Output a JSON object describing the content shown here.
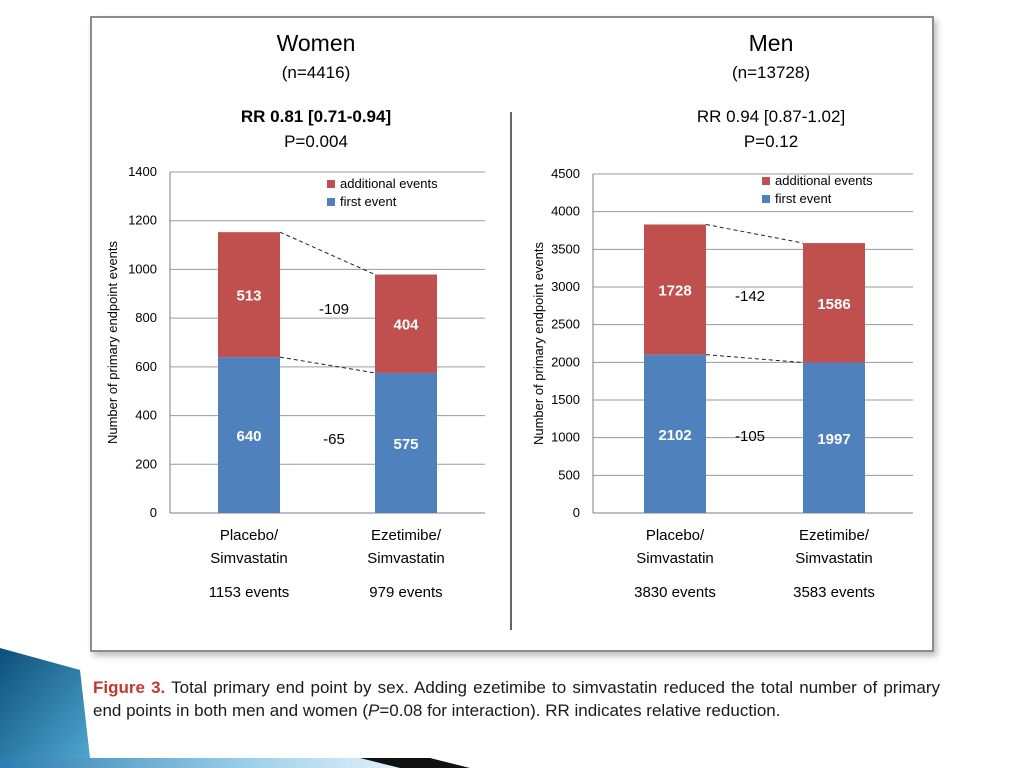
{
  "chart_data": [
    {
      "type": "bar",
      "stacked": true,
      "title": "Women",
      "subtitle": "(n=4416)",
      "rr_text": "RR 0.81 [0.71-0.94]",
      "rr_bold": true,
      "p_text": "P=0.004",
      "ylabel": "Number of primary endpoint events",
      "ylim": [
        0,
        1400
      ],
      "ytick_step": 200,
      "yticks": [
        "0",
        "200",
        "400",
        "600",
        "800",
        "1000",
        "1200",
        "1400"
      ],
      "categories": [
        "Placebo/ Simvastatin",
        "Ezetimibe/ Simvastatin"
      ],
      "category_lines": [
        [
          "Placebo/",
          "Simvastatin"
        ],
        [
          "Ezetimibe/",
          "Simvastatin"
        ]
      ],
      "series": [
        {
          "name": "first event",
          "values": [
            640,
            575
          ],
          "color": "#4f81bd"
        },
        {
          "name": "additional events",
          "values": [
            513,
            404
          ],
          "color": "#c0504d"
        }
      ],
      "value_labels": [
        [
          "640",
          "575"
        ],
        [
          "513",
          "404"
        ]
      ],
      "totals": [
        1153,
        979
      ],
      "total_labels": [
        "1153 events",
        "979 events"
      ],
      "diff_labels": {
        "first": "-65",
        "additional": "-109"
      },
      "legend": [
        "additional events",
        "first event"
      ],
      "legend_position": "top-right",
      "grid": true
    },
    {
      "type": "bar",
      "stacked": true,
      "title": "Men",
      "subtitle": "(n=13728)",
      "rr_text": "RR 0.94 [0.87-1.02]",
      "rr_bold": false,
      "p_text": "P=0.12",
      "ylabel": "Number of primary endpoint events",
      "ylim": [
        0,
        4500
      ],
      "ytick_step": 500,
      "yticks": [
        "0",
        "500",
        "1000",
        "1500",
        "2000",
        "2500",
        "3000",
        "3500",
        "4000",
        "4500"
      ],
      "categories": [
        "Placebo/ Simvastatin",
        "Ezetimibe/ Simvastatin"
      ],
      "category_lines": [
        [
          "Placebo/",
          "Simvastatin"
        ],
        [
          "Ezetimibe/",
          "Simvastatin"
        ]
      ],
      "series": [
        {
          "name": "first event",
          "values": [
            2102,
            1997
          ],
          "color": "#4f81bd"
        },
        {
          "name": "additional events",
          "values": [
            1728,
            1586
          ],
          "color": "#c0504d"
        }
      ],
      "value_labels": [
        [
          "2102",
          "1997"
        ],
        [
          "1728",
          "1586"
        ]
      ],
      "totals": [
        3830,
        3583
      ],
      "total_labels": [
        "3830 events",
        "3583 events"
      ],
      "diff_labels": {
        "first": "-105",
        "additional": "-142"
      },
      "legend": [
        "additional events",
        "first event"
      ],
      "legend_position": "top-right",
      "grid": true
    }
  ],
  "caption": {
    "label": "Figure 3.",
    "text_before": " Total primary end point by sex. Adding ezetimibe to simvastatin reduced the total number of primary end points in both men and women (",
    "p_symbol": "P",
    "text_after": "=0.08 for interaction). RR indicates relative reduction."
  },
  "colors": {
    "first_event": "#4f81bd",
    "additional_events": "#c0504d",
    "caption_label": "#c0392b",
    "ribbon": "#1f6e9e"
  }
}
